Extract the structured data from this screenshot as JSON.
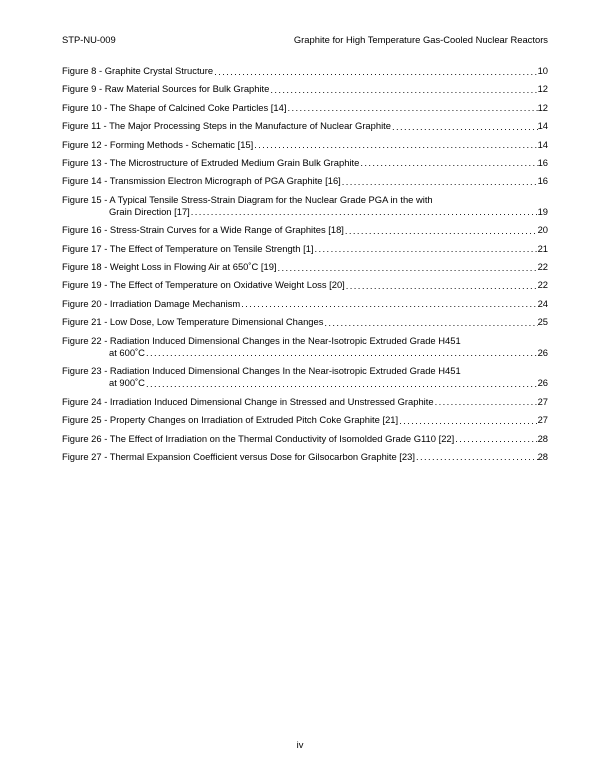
{
  "header": {
    "left": "STP-NU-009",
    "right": "Graphite for High Temperature Gas-Cooled Nuclear Reactors"
  },
  "entries": [
    {
      "label": "Figure 8 - Graphite Crystal Structure",
      "page": "10"
    },
    {
      "label": "Figure 9 - Raw Material Sources for Bulk Graphite",
      "page": "12"
    },
    {
      "label": "Figure 10 - The Shape of Calcined Coke Particles [14]",
      "page": "12"
    },
    {
      "label": "Figure 11 - The Major Processing Steps in the Manufacture of Nuclear Graphite",
      "page": "14"
    },
    {
      "label": "Figure 12 - Forming Methods - Schematic [15]",
      "page": "14"
    },
    {
      "label": "Figure 13 - The Microstructure of Extruded Medium Grain Bulk Graphite",
      "page": "16"
    },
    {
      "label": "Figure 14 - Transmission Electron Micrograph of PGA Graphite [16]",
      "page": "16"
    },
    {
      "line1": "Figure 15 - A Typical Tensile Stress-Strain Diagram for the Nuclear Grade PGA in the with",
      "line2": "Grain Direction [17]",
      "page": "19"
    },
    {
      "label": "Figure 16 - Stress-Strain Curves for a Wide Range of Graphites [18]",
      "page": "20"
    },
    {
      "label": "Figure 17 - The Effect of Temperature on Tensile Strength [1]",
      "page": "21"
    },
    {
      "label": "Figure 18 - Weight Loss in Flowing Air at 650˚C [19]",
      "page": "22"
    },
    {
      "label": "Figure 19 - The Effect of Temperature on Oxidative Weight Loss [20]",
      "page": "22"
    },
    {
      "label": "Figure 20 - Irradiation Damage Mechanism",
      "page": "24"
    },
    {
      "label": "Figure 21 - Low Dose, Low Temperature Dimensional Changes",
      "page": "25"
    },
    {
      "line1": "Figure 22 - Radiation Induced Dimensional Changes in the Near-Isotropic Extruded Grade H451",
      "line2": "at 600˚C",
      "page": "26"
    },
    {
      "line1": "Figure 23 - Radiation Induced Dimensional Changes In the Near-isotropic Extruded Grade H451",
      "line2": "at 900˚C",
      "page": "26"
    },
    {
      "label": "Figure 24 - Irradiation Induced Dimensional Change in Stressed and Unstressed Graphite",
      "page": "27"
    },
    {
      "label": "Figure 25 - Property Changes on Irradiation of Extruded Pitch Coke Graphite [21]",
      "page": "27"
    },
    {
      "label": "Figure 26 - The Effect of Irradiation on the Thermal Conductivity of Isomolded Grade G110 [22]",
      "page": "28"
    },
    {
      "label": "Figure 27 - Thermal Expansion Coefficient versus Dose for Gilsocarbon Graphite [23]",
      "page": "28"
    }
  ],
  "footer": "iv"
}
